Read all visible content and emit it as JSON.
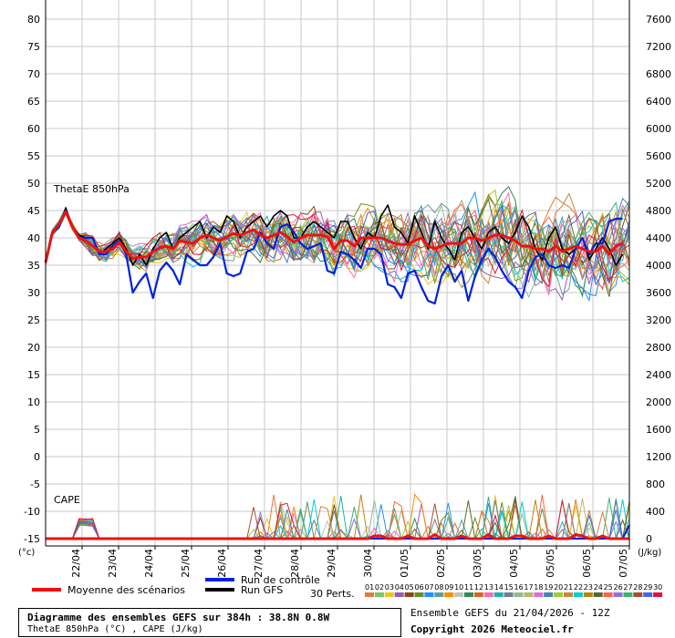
{
  "chart_data": {
    "type": "line",
    "title": "Diagramme des ensembles GEFS sur 384h : 38.8N 0.8W",
    "subtitle": "ThetaE 850hPa (°C) , CAPE (J/kg)",
    "run_info": "Ensemble GEFS du 21/04/2026 - 12Z",
    "copyright": "Copyright 2026 Meteociel.fr",
    "y_left_unit": "(°c)",
    "y_right_unit": "(J/kg)",
    "y_left_ticks": [
      80,
      75,
      70,
      65,
      60,
      55,
      50,
      45,
      40,
      35,
      30,
      25,
      20,
      15,
      10,
      5,
      0,
      -5,
      -10,
      -15
    ],
    "y_right_ticks": [
      7600,
      7200,
      6800,
      6400,
      6000,
      5600,
      5200,
      4800,
      4400,
      4000,
      3600,
      3200,
      2800,
      2400,
      2000,
      1600,
      1200,
      800,
      400,
      0
    ],
    "x_labels": [
      "22/04",
      "23/04",
      "24/04",
      "25/04",
      "26/04",
      "27/04",
      "28/04",
      "29/04",
      "30/04",
      "01/05",
      "02/05",
      "03/05",
      "04/05",
      "05/05",
      "06/05",
      "07/05"
    ],
    "grid": true,
    "panels": {
      "thetae": {
        "label": "ThetaE 850hPa",
        "unit": "°C"
      },
      "cape": {
        "label": "CAPE",
        "unit": "J/kg"
      }
    },
    "legend": {
      "mean": "Moyenne des scénarios",
      "control": "Run de contrôle",
      "gfs": "Run GFS",
      "perts": "30 Perts.",
      "pert_numbers": [
        "01",
        "02",
        "03",
        "04",
        "05",
        "06",
        "07",
        "08",
        "09",
        "10",
        "11",
        "12",
        "13",
        "14",
        "15",
        "16",
        "17",
        "18",
        "19",
        "20",
        "21",
        "22",
        "23",
        "24",
        "25",
        "26",
        "27",
        "28",
        "29",
        "30"
      ],
      "pert_colors": [
        "#e07b39",
        "#7ac36a",
        "#f0c419",
        "#9b59b6",
        "#8b4513",
        "#6b8e23",
        "#1e90ff",
        "#5f9ea0",
        "#ff8c00",
        "#c0c0c0",
        "#2e8b57",
        "#d2691e",
        "#ff69b4",
        "#20b2aa",
        "#708090",
        "#8fbc8f",
        "#bdb76b",
        "#da70d6",
        "#4682b4",
        "#9acd32",
        "#cd853f",
        "#00ced1",
        "#b8860b",
        "#556b2f",
        "#ff6347",
        "#9370db",
        "#3cb371",
        "#a0522d",
        "#4169e1",
        "#dc143c"
      ]
    },
    "colors": {
      "mean": "#ee1111",
      "control": "#0022dd",
      "gfs": "#000000"
    },
    "series": [
      {
        "name": "Moyenne des scénarios",
        "values": [
          35.5,
          41,
          42.5,
          44.8,
          42,
          40,
          39.5,
          38.5,
          37.5,
          37.5,
          38,
          39.2,
          37.5,
          36.2,
          36.5,
          36.5,
          37.5,
          38.2,
          38.5,
          38,
          39.5,
          39.2,
          39,
          40,
          40.5,
          40,
          39.5,
          40.2,
          40.8,
          40.5,
          41,
          41.5,
          40.5,
          40,
          40.5,
          41,
          40.2,
          39.2,
          40,
          40.5,
          40.5,
          40.5,
          40.2,
          38,
          39.5,
          39.5,
          38.5,
          40,
          40,
          40,
          40,
          39.5,
          39,
          38.8,
          38.8,
          39.5,
          40,
          38.5,
          38,
          38.5,
          39,
          39,
          39,
          40,
          40,
          39.5,
          40,
          40.5,
          40.5,
          40,
          39.5,
          38.5,
          38.5,
          38,
          38,
          37.5,
          38.5,
          37.5,
          38,
          38.5,
          38,
          37.5,
          37.5,
          38.5,
          37,
          38.5,
          39
        ]
      },
      {
        "name": "Run de contrôle",
        "values": [
          35.5,
          41,
          42,
          45,
          42,
          40,
          40,
          40,
          37,
          37,
          38.5,
          39.5,
          37,
          30,
          32,
          33.5,
          29,
          34,
          35.5,
          34,
          31.5,
          37,
          36,
          35,
          35,
          36.5,
          39,
          33.5,
          33,
          33.5,
          37.5,
          38,
          41,
          39,
          38,
          42,
          42.5,
          41,
          39,
          38,
          38.5,
          39,
          34,
          33.5,
          37.5,
          37,
          36,
          34.5,
          38,
          38,
          37,
          31.5,
          31,
          29,
          33.5,
          34,
          31,
          28.5,
          28,
          33,
          35,
          32,
          34,
          28.5,
          33,
          36,
          38,
          36.5,
          34,
          32,
          31,
          29,
          34,
          36.5,
          37,
          35,
          34.5,
          35,
          34.5,
          38,
          40,
          37,
          39,
          39,
          43,
          43.5,
          43.5
        ]
      },
      {
        "name": "Run GFS",
        "values": [
          35.5,
          41,
          42,
          45.5,
          42,
          40.5,
          40,
          40,
          37,
          38,
          39,
          40,
          38,
          35,
          37,
          35,
          38,
          40,
          41,
          38,
          40,
          41,
          42,
          43,
          40,
          42,
          41,
          44,
          43,
          40,
          42,
          43,
          44,
          42,
          44,
          45,
          44,
          40,
          40,
          42,
          43,
          42,
          41,
          40,
          43,
          43,
          40,
          38,
          41,
          40,
          44,
          46,
          42,
          41,
          39,
          44,
          41,
          38,
          43,
          40,
          38,
          36,
          41,
          42,
          40,
          38,
          41,
          42,
          40,
          39,
          41,
          44,
          42,
          38,
          36,
          40,
          42,
          38,
          37,
          38,
          40,
          36,
          38,
          40,
          38,
          35,
          37
        ]
      }
    ],
    "cape_series": [
      {
        "name": "Run de contrôle",
        "values": [
          0,
          0,
          0,
          0,
          0,
          0,
          0,
          0,
          0,
          0,
          0,
          0,
          0,
          0,
          0,
          0,
          0,
          0,
          0,
          0,
          0,
          0,
          0,
          0,
          0,
          0,
          0,
          0,
          0,
          0,
          0,
          0,
          0,
          0,
          0,
          0,
          0,
          0,
          0,
          0,
          0,
          0,
          0,
          0,
          0,
          0,
          0,
          0,
          0,
          0,
          0,
          0,
          0,
          0,
          0,
          0,
          0,
          0,
          0,
          0,
          0,
          0,
          0,
          0,
          0,
          0,
          0,
          0,
          0,
          0,
          0,
          0,
          0,
          0,
          0,
          0,
          0,
          0,
          0,
          0,
          0,
          0,
          0,
          0,
          0,
          0,
          0,
          200
        ]
      },
      {
        "name": "Moyenne des scénarios",
        "values": [
          0,
          0,
          0,
          0,
          0,
          0,
          0,
          0,
          0,
          0,
          0,
          0,
          0,
          0,
          0,
          0,
          0,
          0,
          0,
          0,
          0,
          0,
          0,
          0,
          0,
          0,
          0,
          0,
          0,
          0,
          0,
          0,
          0,
          0,
          0,
          0,
          0,
          0,
          0,
          0,
          0,
          0,
          0,
          0,
          0,
          0,
          0,
          0,
          0,
          40,
          40,
          0,
          0,
          0,
          40,
          0,
          0,
          0,
          60,
          0,
          0,
          0,
          40,
          0,
          0,
          0,
          60,
          0,
          0,
          0,
          40,
          40,
          0,
          0,
          0,
          40,
          0,
          0,
          0,
          60,
          40,
          0,
          0,
          40,
          0,
          0,
          0,
          0
        ]
      }
    ]
  }
}
